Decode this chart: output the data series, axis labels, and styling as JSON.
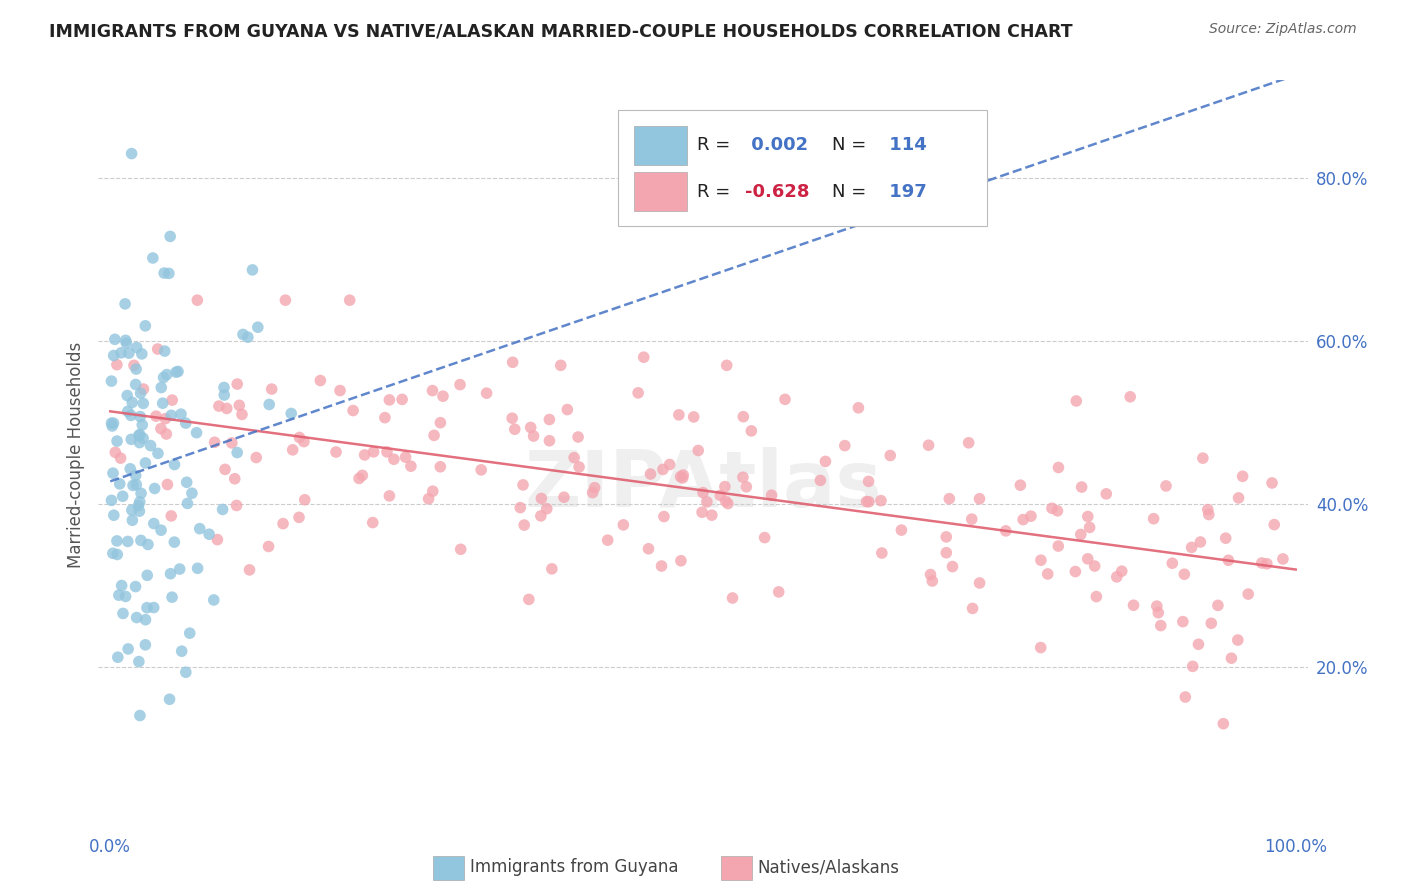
{
  "title": "IMMIGRANTS FROM GUYANA VS NATIVE/ALASKAN MARRIED-COUPLE HOUSEHOLDS CORRELATION CHART",
  "source": "Source: ZipAtlas.com",
  "ylabel": "Married-couple Households",
  "legend_label1": "Immigrants from Guyana",
  "legend_label2": "Natives/Alaskans",
  "r1": 0.002,
  "n1": 114,
  "r2": -0.628,
  "n2": 197,
  "color1": "#92c5de",
  "color2": "#f4a6b0",
  "line_color1": "#4472c4",
  "line_color2": "#e06070",
  "watermark": "ZIPAtlas",
  "background_color": "#ffffff",
  "grid_color": "#c0c0c0",
  "title_color": "#222222",
  "axis_label_color": "#4472c4",
  "tick_color": "#4472c4",
  "legend_r_color1": "#4472c4",
  "legend_r_color2": "#cc2244",
  "legend_n_color": "#4472c4"
}
